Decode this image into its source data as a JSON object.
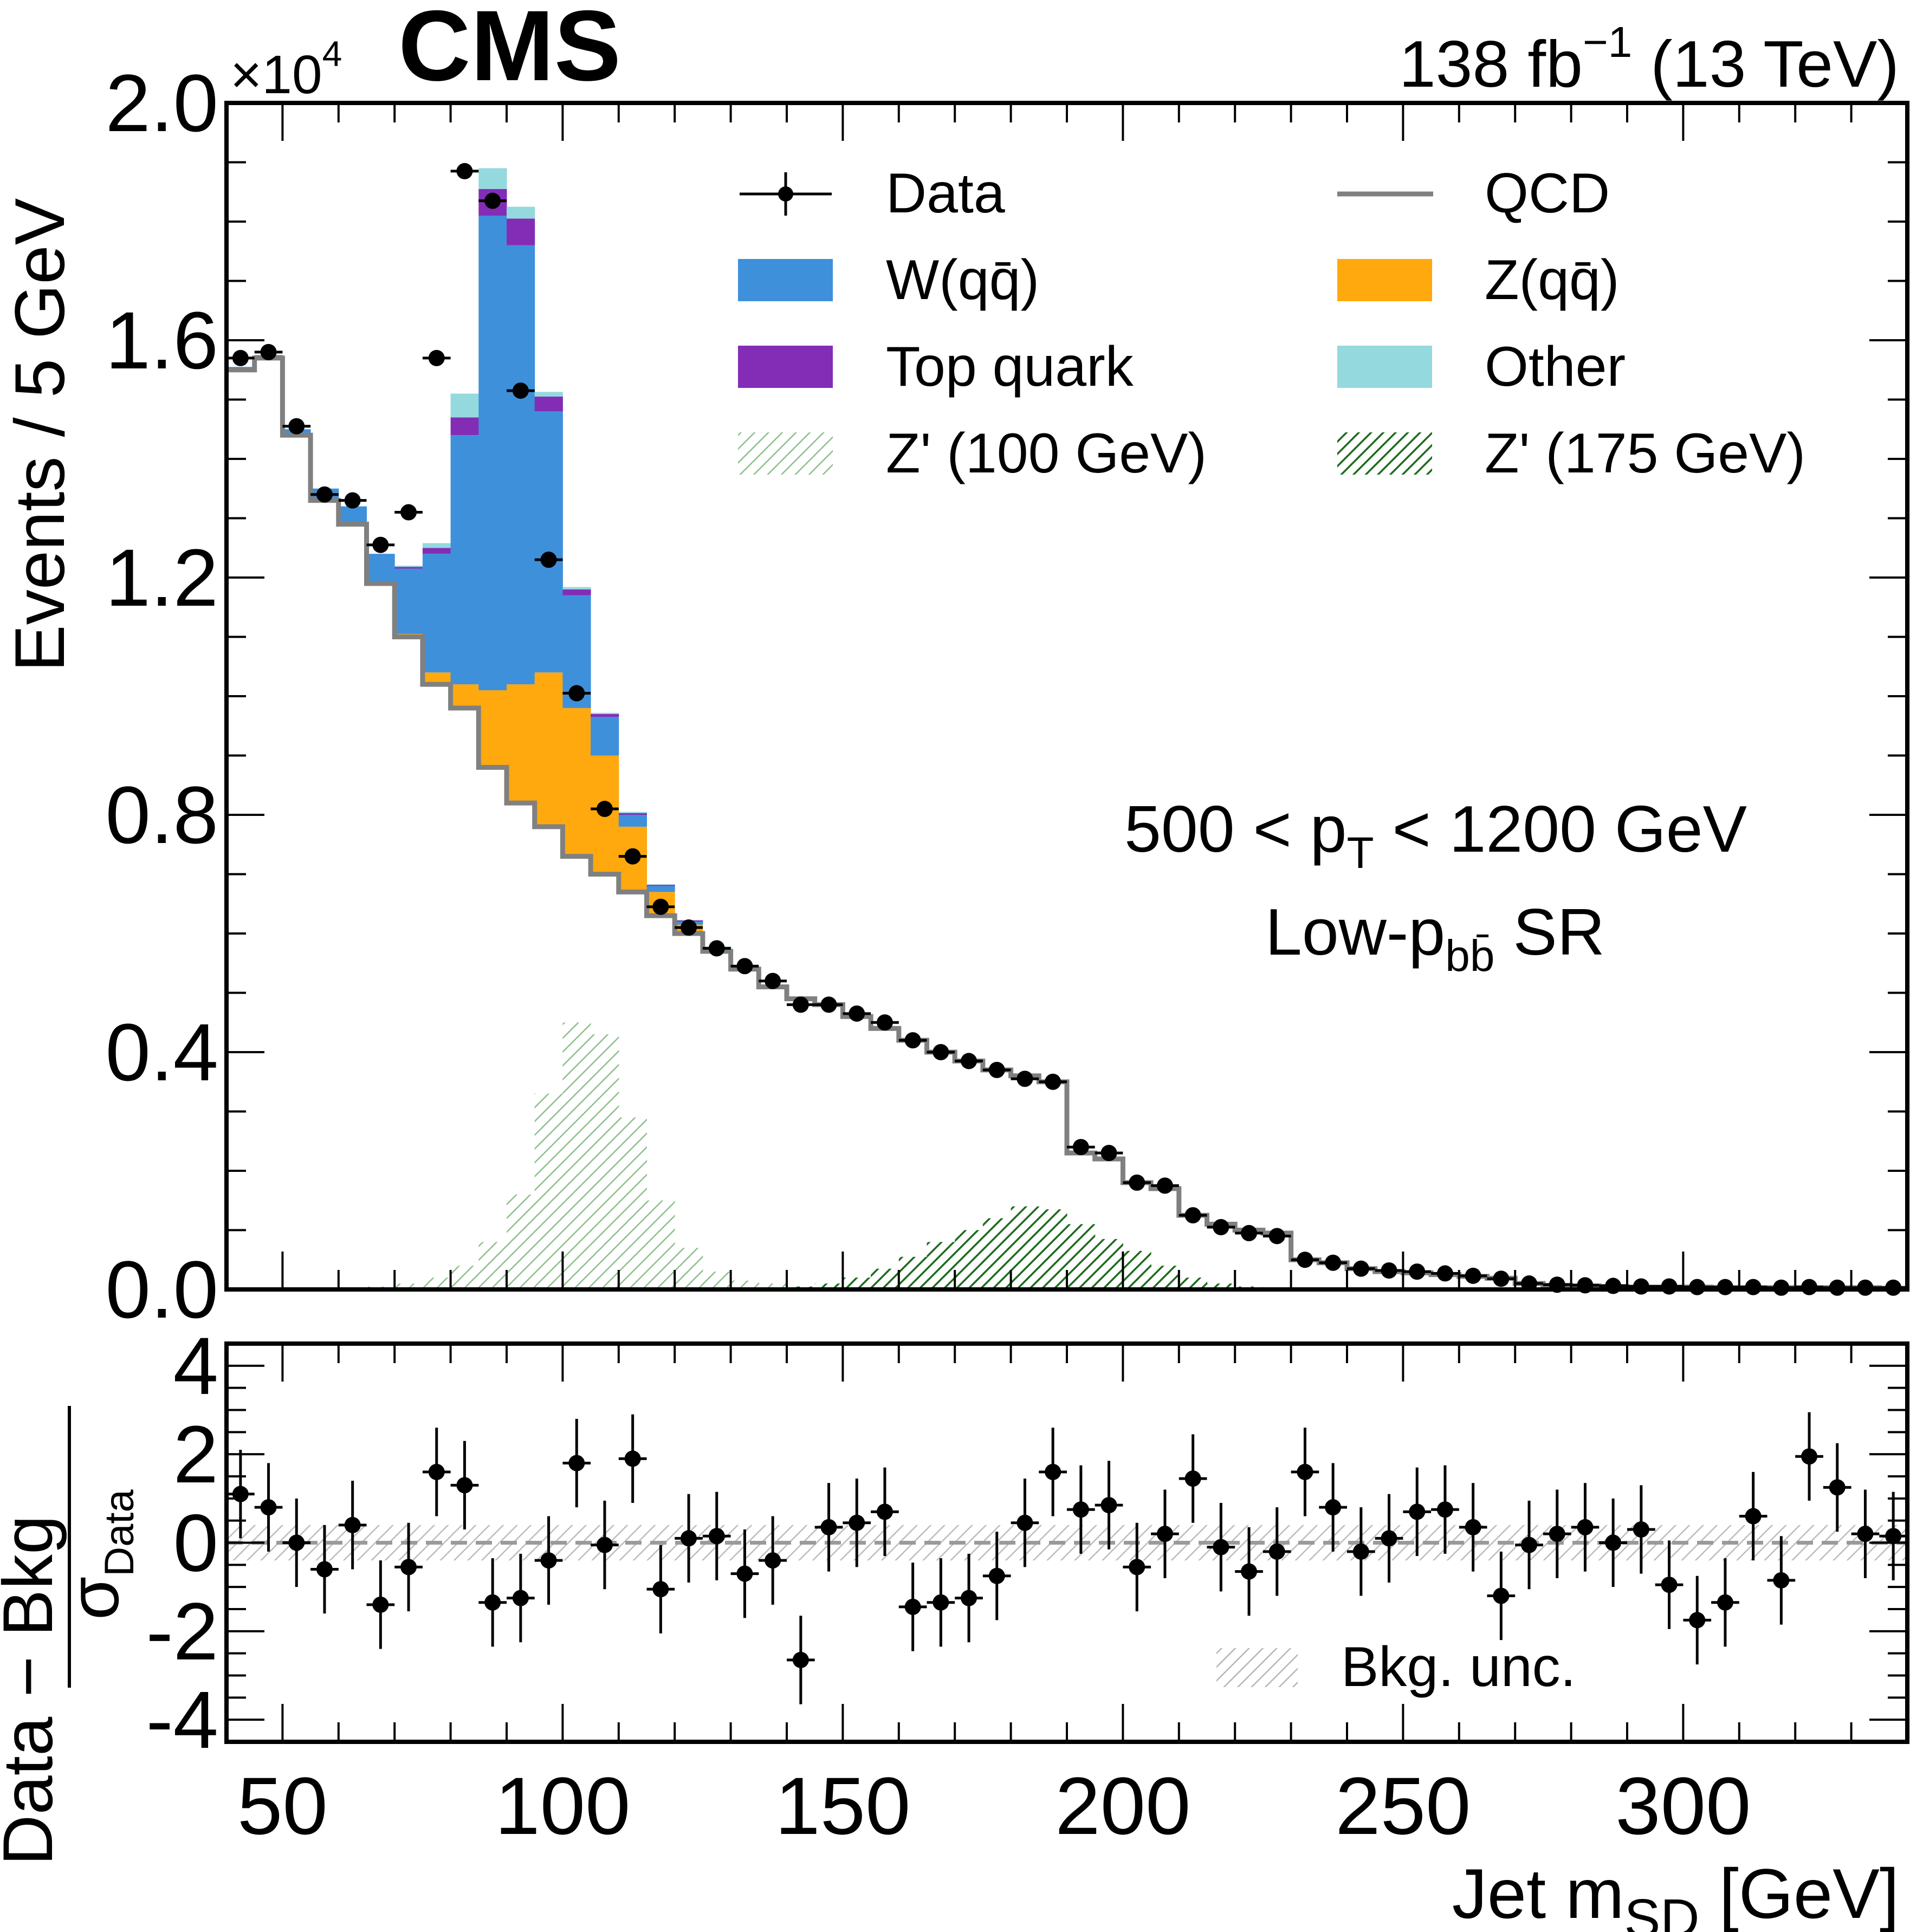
{
  "header": {
    "experiment": "CMS",
    "luminosity": "138 fb",
    "luminosity_sup": "−1",
    "energy": " (13 TeV)",
    "y_multiplier": "×10",
    "y_multiplier_exp": "4"
  },
  "annotations": {
    "pt_range_pre": "500 < p",
    "pt_range_sub": "T",
    "pt_range_post": " < 1200 GeV",
    "region_pre": "Low-p",
    "region_sub": "bb̄",
    "region_post": " SR"
  },
  "axes": {
    "ylabel_top": "Events / 5 GeV",
    "ylabel_bottom_num": "Data − Bkg",
    "ylabel_bottom_den": "σ",
    "ylabel_bottom_den_sub": "Data",
    "xlabel_pre": "Jet m",
    "xlabel_sub": "SD",
    "xlabel_post": " [GeV]"
  },
  "legend": {
    "data": "Data",
    "qcd": "QCD",
    "wqq": "W(qq̄)",
    "zqq": "Z(qq̄)",
    "top": "Top quark",
    "other": "Other",
    "zp100": "Z' (100 GeV)",
    "zp175": "Z' (175 GeV)",
    "bkg_unc": "Bkg. unc."
  },
  "colors": {
    "qcd": "#808080",
    "wqq": "#3f90da",
    "zqq": "#ffa90e",
    "top": "#832db6",
    "other": "#94d9de",
    "zp100": "#8bbf8b",
    "zp175": "#1d6b1d",
    "unc": "#b5b5b5"
  },
  "chart_data": [
    {
      "panel": "top",
      "type": "bar",
      "stacked": true,
      "y_scale": "×10^4",
      "xlim": [
        40,
        340
      ],
      "ylim": [
        0,
        2.0
      ],
      "x_ticks": [
        50,
        100,
        150,
        200,
        250,
        300
      ],
      "y_ticks": [
        "0.0",
        "0.4",
        "0.8",
        "1.2",
        "1.6",
        "2.0"
      ],
      "bin_edges": [
        40,
        45,
        50,
        55,
        60,
        65,
        70,
        75,
        80,
        85,
        90,
        95,
        100,
        105,
        110,
        115,
        120,
        125,
        130,
        135,
        140,
        145,
        150,
        155,
        160,
        165,
        170,
        175,
        180,
        185,
        190,
        195,
        200,
        205,
        210,
        215,
        220,
        225,
        230,
        235,
        240,
        245,
        250,
        255,
        260,
        265,
        270,
        275,
        280,
        285,
        290,
        295,
        300,
        305,
        310,
        315,
        320,
        325,
        330,
        335,
        340
      ],
      "series": [
        {
          "name": "QCD",
          "values": [
            1.55,
            1.57,
            1.44,
            1.33,
            1.29,
            1.19,
            1.1,
            1.02,
            0.98,
            0.88,
            0.82,
            0.78,
            0.73,
            0.7,
            0.67,
            0.63,
            0.6,
            0.57,
            0.54,
            0.51,
            0.49,
            0.48,
            0.46,
            0.44,
            0.42,
            0.4,
            0.385,
            0.37,
            0.36,
            0.35,
            0.23,
            0.22,
            0.18,
            0.17,
            0.125,
            0.11,
            0.1,
            0.095,
            0.05,
            0.045,
            0.035,
            0.03,
            0.028,
            0.025,
            0.022,
            0.019,
            0.01,
            0.007,
            0.006,
            0.005,
            0.004,
            0.004,
            0.004,
            0.003,
            0.003,
            0.003,
            0.003,
            0.003,
            0.003,
            0.002
          ]
        },
        {
          "name": "Z(qq̄)",
          "values": [
            0,
            0,
            0,
            0,
            0,
            0,
            0.005,
            0.02,
            0.04,
            0.13,
            0.2,
            0.26,
            0.25,
            0.2,
            0.11,
            0.04,
            0.015,
            0.005,
            0,
            0,
            0,
            0,
            0,
            0,
            0,
            0,
            0,
            0,
            0,
            0,
            0,
            0,
            0,
            0,
            0,
            0,
            0,
            0,
            0,
            0,
            0,
            0,
            0,
            0,
            0,
            0,
            0,
            0,
            0,
            0,
            0,
            0,
            0,
            0,
            0,
            0,
            0,
            0,
            0,
            0
          ]
        },
        {
          "name": "W(qq̄)",
          "values": [
            0.005,
            0.005,
            0.01,
            0.02,
            0.03,
            0.05,
            0.11,
            0.2,
            0.42,
            0.8,
            0.74,
            0.44,
            0.19,
            0.065,
            0.02,
            0.01,
            0.005,
            0,
            0,
            0,
            0,
            0,
            0,
            0,
            0,
            0,
            0,
            0,
            0,
            0,
            0,
            0,
            0,
            0,
            0,
            0,
            0,
            0,
            0,
            0,
            0,
            0,
            0,
            0,
            0,
            0,
            0,
            0,
            0,
            0,
            0,
            0,
            0,
            0,
            0,
            0,
            0,
            0,
            0,
            0
          ]
        },
        {
          "name": "Top quark",
          "values": [
            0,
            0,
            0,
            0,
            0,
            0,
            0.003,
            0.01,
            0.03,
            0.045,
            0.045,
            0.025,
            0.01,
            0.005,
            0.003,
            0.002,
            0.002,
            0.002,
            0.002,
            0.002,
            0.002,
            0.002,
            0.002,
            0.002,
            0.002,
            0.002,
            0.002,
            0.002,
            0.002,
            0.002,
            0,
            0,
            0,
            0,
            0,
            0,
            0,
            0,
            0,
            0,
            0,
            0,
            0,
            0,
            0,
            0,
            0,
            0,
            0,
            0,
            0,
            0,
            0,
            0,
            0,
            0,
            0,
            0,
            0,
            0
          ]
        },
        {
          "name": "Other",
          "values": [
            0,
            0,
            0,
            0,
            0,
            0,
            0.002,
            0.008,
            0.04,
            0.035,
            0.02,
            0.008,
            0.004,
            0.002,
            0.002,
            0.001,
            0.001,
            0.001,
            0.001,
            0,
            0,
            0,
            0,
            0,
            0,
            0,
            0,
            0,
            0,
            0,
            0,
            0,
            0,
            0,
            0,
            0,
            0,
            0,
            0,
            0,
            0,
            0,
            0,
            0,
            0,
            0,
            0,
            0,
            0,
            0,
            0,
            0,
            0,
            0,
            0,
            0,
            0,
            0,
            0,
            0
          ]
        },
        {
          "name": "Z' (100 GeV)",
          "values": [
            0,
            0,
            0,
            0,
            0,
            0,
            0,
            0,
            0,
            0,
            0,
            0,
            0,
            0,
            0,
            0,
            0,
            0,
            0,
            0,
            0,
            0,
            0,
            0,
            0,
            0,
            0,
            0,
            0,
            0,
            0,
            0,
            0,
            0,
            0,
            0,
            0,
            0,
            0,
            0,
            0,
            0,
            0,
            0,
            0,
            0,
            0,
            0,
            0,
            0,
            0,
            0,
            0,
            0,
            0,
            0,
            0,
            0,
            0,
            0
          ],
          "overlay": [
            0,
            0,
            0,
            0,
            0.002,
            0.005,
            0.01,
            0.02,
            0.04,
            0.08,
            0.16,
            0.33,
            0.45,
            0.43,
            0.29,
            0.15,
            0.07,
            0.03,
            0.015,
            0.01,
            0.005,
            0.003,
            0.002,
            0,
            0,
            0,
            0,
            0,
            0,
            0,
            0,
            0,
            0,
            0,
            0,
            0,
            0,
            0,
            0,
            0,
            0,
            0,
            0,
            0,
            0,
            0,
            0,
            0,
            0,
            0,
            0,
            0,
            0,
            0,
            0,
            0,
            0,
            0,
            0,
            0
          ]
        },
        {
          "name": "Z' (175 GeV)",
          "values": [
            0,
            0,
            0,
            0,
            0,
            0,
            0,
            0,
            0,
            0,
            0,
            0,
            0,
            0,
            0,
            0,
            0,
            0,
            0,
            0,
            0,
            0,
            0,
            0,
            0,
            0,
            0,
            0,
            0,
            0,
            0,
            0,
            0,
            0,
            0,
            0,
            0,
            0,
            0,
            0,
            0,
            0,
            0,
            0,
            0,
            0,
            0,
            0,
            0,
            0,
            0,
            0,
            0,
            0,
            0,
            0,
            0,
            0,
            0,
            0
          ],
          "overlay": [
            0,
            0,
            0,
            0,
            0,
            0,
            0,
            0,
            0,
            0,
            0,
            0,
            0,
            0,
            0,
            0,
            0,
            0,
            0,
            0,
            0.005,
            0.01,
            0.02,
            0.035,
            0.055,
            0.08,
            0.1,
            0.12,
            0.14,
            0.135,
            0.11,
            0.085,
            0.065,
            0.04,
            0.02,
            0.01,
            0.005,
            0.002,
            0,
            0,
            0,
            0,
            0,
            0,
            0,
            0,
            0,
            0,
            0,
            0,
            0,
            0,
            0,
            0,
            0,
            0,
            0,
            0,
            0,
            0
          ]
        }
      ],
      "data_points": {
        "name": "Data",
        "x": [
          42.5,
          47.5,
          52.5,
          57.5,
          62.5,
          67.5,
          72.5,
          77.5,
          82.5,
          87.5,
          92.5,
          97.5,
          102.5,
          107.5,
          112.5,
          117.5,
          122.5,
          127.5,
          132.5,
          137.5,
          142.5,
          147.5,
          152.5,
          157.5,
          162.5,
          167.5,
          172.5,
          177.5,
          182.5,
          187.5,
          192.5,
          197.5,
          202.5,
          207.5,
          212.5,
          217.5,
          222.5,
          227.5,
          232.5,
          237.5,
          242.5,
          247.5,
          252.5,
          257.5,
          262.5,
          267.5,
          272.5,
          277.5,
          282.5,
          287.5,
          292.5,
          297.5,
          302.5,
          307.5,
          312.5,
          317.5,
          322.5,
          327.5,
          332.5,
          337.5
        ],
        "y": [
          1.57,
          1.58,
          1.455,
          1.34,
          1.33,
          1.255,
          1.31,
          1.57,
          1.885,
          1.835,
          1.515,
          1.23,
          1.005,
          0.81,
          0.73,
          0.645,
          0.61,
          0.575,
          0.545,
          0.52,
          0.48,
          0.48,
          0.465,
          0.45,
          0.42,
          0.4,
          0.385,
          0.37,
          0.355,
          0.35,
          0.24,
          0.23,
          0.18,
          0.175,
          0.125,
          0.105,
          0.095,
          0.09,
          0.05,
          0.045,
          0.035,
          0.032,
          0.03,
          0.027,
          0.023,
          0.018,
          0.01,
          0.008,
          0.007,
          0.006,
          0.005,
          0.005,
          0.004,
          0.004,
          0.004,
          0.003,
          0.004,
          0.003,
          0.003,
          0.003
        ]
      }
    },
    {
      "panel": "bottom",
      "type": "scatter",
      "ylabel": "Data − Bkg / σData",
      "xlabel": "Jet mSD [GeV]",
      "xlim": [
        40,
        340
      ],
      "ylim": [
        -4.5,
        4.5
      ],
      "y_ticks": [
        "-4",
        "-2",
        "0",
        "2",
        "4"
      ],
      "x": [
        42.5,
        47.5,
        52.5,
        57.5,
        62.5,
        67.5,
        72.5,
        77.5,
        82.5,
        87.5,
        92.5,
        97.5,
        102.5,
        107.5,
        112.5,
        117.5,
        122.5,
        127.5,
        132.5,
        137.5,
        142.5,
        147.5,
        152.5,
        157.5,
        162.5,
        167.5,
        172.5,
        177.5,
        182.5,
        187.5,
        192.5,
        197.5,
        202.5,
        207.5,
        212.5,
        217.5,
        222.5,
        227.5,
        232.5,
        237.5,
        242.5,
        247.5,
        252.5,
        257.5,
        262.5,
        267.5,
        272.5,
        277.5,
        282.5,
        287.5,
        292.5,
        297.5,
        302.5,
        307.5,
        312.5,
        317.5,
        322.5,
        327.5,
        332.5,
        337.5
      ],
      "values": [
        1.1,
        0.8,
        0.0,
        -0.6,
        0.4,
        -1.4,
        -0.55,
        1.6,
        1.3,
        -1.35,
        -1.25,
        -0.4,
        1.8,
        -0.05,
        1.9,
        -1.05,
        0.1,
        0.15,
        -0.7,
        -0.4,
        -2.65,
        0.35,
        0.45,
        0.7,
        -1.45,
        -1.35,
        -1.25,
        -0.75,
        0.45,
        1.6,
        0.75,
        0.85,
        -0.55,
        0.2,
        1.45,
        -0.1,
        -0.65,
        -0.2,
        1.6,
        0.8,
        -0.2,
        0.1,
        0.7,
        0.75,
        0.35,
        -1.2,
        -0.05,
        0.2,
        0.35,
        0.0,
        0.3,
        -0.95,
        -1.75,
        -1.35,
        0.6,
        -0.85,
        1.95,
        1.25,
        0.2,
        0.15
      ],
      "errors": 1.0,
      "band": "Bkg. unc."
    }
  ]
}
